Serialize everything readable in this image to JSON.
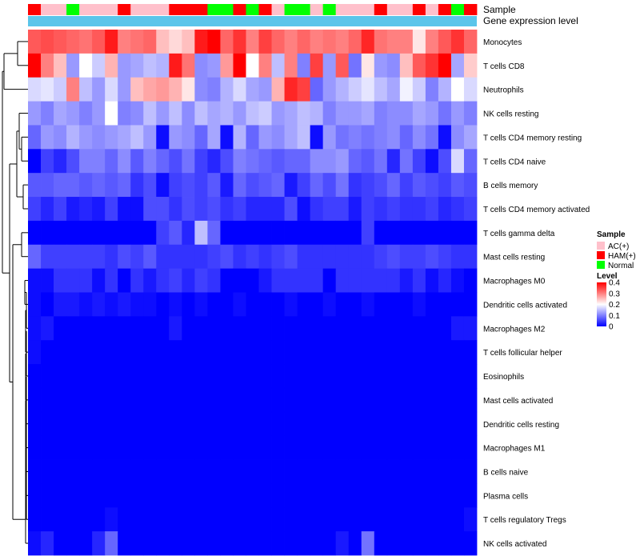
{
  "chart_data": {
    "type": "heatmap",
    "title": "",
    "annotation_tracks": [
      {
        "name": "Sample",
        "type": "categorical"
      },
      {
        "name": "Gene expression level",
        "type": "constant",
        "color": "#5bc5ea"
      }
    ],
    "sample_categories": [
      "AC(+)",
      "HAM(+)",
      "Normal"
    ],
    "sample_colors": {
      "AC(+)": "#ffc0cb",
      "HAM(+)": "#ff0000",
      "Normal": "#00ff00"
    },
    "sample_groups": [
      "HAM(+)",
      "AC(+)",
      "AC(+)",
      "Normal",
      "AC(+)",
      "AC(+)",
      "AC(+)",
      "HAM(+)",
      "AC(+)",
      "AC(+)",
      "AC(+)",
      "HAM(+)",
      "HAM(+)",
      "HAM(+)",
      "Normal",
      "Normal",
      "HAM(+)",
      "Normal",
      "HAM(+)",
      "AC(+)",
      "Normal",
      "Normal",
      "AC(+)",
      "Normal",
      "AC(+)",
      "AC(+)",
      "AC(+)",
      "HAM(+)",
      "AC(+)",
      "AC(+)",
      "HAM(+)",
      "AC(+)",
      "HAM(+)",
      "Normal",
      "HAM(+)"
    ],
    "rows": [
      "Monocytes",
      "T cells CD8",
      "Neutrophils",
      "NK cells resting",
      "T cells CD4 memory resting",
      "T cells CD4 naive",
      "B cells memory",
      "T cells CD4 memory activated",
      "T cells gamma delta",
      "Mast cells resting",
      "Macrophages M0",
      "Dendritic cells activated",
      "Macrophages M2",
      "T cells follicular helper",
      "Eosinophils",
      "Mast cells activated",
      "Dendritic cells resting",
      "Macrophages M1",
      "B cells naive",
      "Plasma cells",
      "T cells regulatory  Tregs",
      "NK cells activated"
    ],
    "values": [
      [
        0.33,
        0.34,
        0.33,
        0.32,
        0.31,
        0.33,
        0.38,
        0.3,
        0.31,
        0.32,
        0.25,
        0.23,
        0.25,
        0.38,
        0.4,
        0.32,
        0.36,
        0.3,
        0.35,
        0.32,
        0.3,
        0.32,
        0.3,
        0.31,
        0.3,
        0.32,
        0.37,
        0.31,
        0.3,
        0.3,
        0.22,
        0.3,
        0.33,
        0.36,
        0.32
      ],
      [
        0.4,
        0.3,
        0.25,
        0.12,
        0.2,
        0.16,
        0.26,
        0.12,
        0.13,
        0.15,
        0.14,
        0.38,
        0.31,
        0.11,
        0.12,
        0.28,
        0.4,
        0.2,
        0.3,
        0.15,
        0.3,
        0.1,
        0.35,
        0.12,
        0.33,
        0.09,
        0.22,
        0.12,
        0.11,
        0.25,
        0.33,
        0.36,
        0.4,
        0.13,
        0.24
      ],
      [
        0.17,
        0.18,
        0.16,
        0.3,
        0.15,
        0.12,
        0.17,
        0.12,
        0.25,
        0.27,
        0.28,
        0.26,
        0.22,
        0.11,
        0.1,
        0.14,
        0.17,
        0.13,
        0.12,
        0.26,
        0.37,
        0.35,
        0.08,
        0.12,
        0.14,
        0.16,
        0.18,
        0.15,
        0.13,
        0.19,
        0.16,
        0.1,
        0.14,
        0.2,
        0.17
      ],
      [
        0.12,
        0.1,
        0.13,
        0.12,
        0.1,
        0.12,
        0.2,
        0.1,
        0.11,
        0.15,
        0.12,
        0.15,
        0.11,
        0.15,
        0.13,
        0.14,
        0.12,
        0.15,
        0.16,
        0.12,
        0.13,
        0.15,
        0.14,
        0.1,
        0.12,
        0.12,
        0.13,
        0.1,
        0.11,
        0.11,
        0.13,
        0.12,
        0.09,
        0.12,
        0.1
      ],
      [
        0.08,
        0.12,
        0.11,
        0.14,
        0.12,
        0.11,
        0.12,
        0.13,
        0.15,
        0.12,
        0.01,
        0.12,
        0.11,
        0.08,
        0.13,
        0.01,
        0.14,
        0.08,
        0.12,
        0.11,
        0.13,
        0.15,
        0.01,
        0.12,
        0.09,
        0.1,
        0.09,
        0.1,
        0.11,
        0.08,
        0.11,
        0.09,
        0.01,
        0.11,
        0.13
      ],
      [
        0.0,
        0.05,
        0.03,
        0.06,
        0.1,
        0.1,
        0.08,
        0.11,
        0.07,
        0.1,
        0.08,
        0.06,
        0.09,
        0.05,
        0.03,
        0.06,
        0.1,
        0.09,
        0.08,
        0.07,
        0.08,
        0.08,
        0.11,
        0.11,
        0.12,
        0.08,
        0.07,
        0.09,
        0.03,
        0.09,
        0.05,
        0.01,
        0.06,
        0.17,
        0.08
      ],
      [
        0.07,
        0.07,
        0.08,
        0.08,
        0.07,
        0.08,
        0.07,
        0.08,
        0.04,
        0.06,
        0.01,
        0.05,
        0.06,
        0.05,
        0.07,
        0.02,
        0.08,
        0.06,
        0.07,
        0.08,
        0.02,
        0.05,
        0.08,
        0.06,
        0.09,
        0.04,
        0.05,
        0.06,
        0.08,
        0.05,
        0.07,
        0.06,
        0.05,
        0.07,
        0.06
      ],
      [
        0.05,
        0.03,
        0.05,
        0.02,
        0.03,
        0.02,
        0.05,
        0.01,
        0.01,
        0.06,
        0.06,
        0.04,
        0.06,
        0.05,
        0.06,
        0.04,
        0.05,
        0.03,
        0.03,
        0.03,
        0.06,
        0.01,
        0.04,
        0.05,
        0.05,
        0.02,
        0.05,
        0.04,
        0.05,
        0.04,
        0.04,
        0.05,
        0.03,
        0.04,
        0.05
      ],
      [
        0.0,
        0.0,
        0.0,
        0.0,
        0.0,
        0.0,
        0.0,
        0.0,
        0.0,
        0.0,
        0.05,
        0.07,
        0.03,
        0.15,
        0.08,
        0.0,
        0.0,
        0.0,
        0.0,
        0.0,
        0.0,
        0.0,
        0.0,
        0.0,
        0.0,
        0.0,
        0.05,
        0.0,
        0.0,
        0.0,
        0.0,
        0.0,
        0.0,
        0.0,
        0.0
      ],
      [
        0.08,
        0.05,
        0.05,
        0.05,
        0.05,
        0.05,
        0.04,
        0.06,
        0.05,
        0.07,
        0.04,
        0.04,
        0.04,
        0.04,
        0.05,
        0.06,
        0.04,
        0.05,
        0.04,
        0.05,
        0.06,
        0.04,
        0.04,
        0.04,
        0.04,
        0.04,
        0.04,
        0.05,
        0.06,
        0.05,
        0.05,
        0.06,
        0.05,
        0.04,
        0.04
      ],
      [
        0.01,
        0.01,
        0.04,
        0.04,
        0.04,
        0.01,
        0.04,
        0.0,
        0.04,
        0.02,
        0.04,
        0.05,
        0.03,
        0.05,
        0.04,
        0.0,
        0.0,
        0.0,
        0.02,
        0.04,
        0.04,
        0.04,
        0.04,
        0.0,
        0.04,
        0.04,
        0.04,
        0.04,
        0.04,
        0.02,
        0.04,
        0.01,
        0.03,
        0.01,
        0.0
      ],
      [
        0.01,
        0.0,
        0.02,
        0.02,
        0.01,
        0.02,
        0.01,
        0.02,
        0.01,
        0.01,
        0.0,
        0.01,
        0.0,
        0.01,
        0.0,
        0.0,
        0.01,
        0.0,
        0.0,
        0.0,
        0.01,
        0.0,
        0.0,
        0.01,
        0.0,
        0.0,
        0.01,
        0.0,
        0.0,
        0.0,
        0.01,
        0.0,
        0.0,
        0.0,
        0.0
      ],
      [
        0.01,
        0.02,
        0.0,
        0.0,
        0.0,
        0.0,
        0.0,
        0.0,
        0.0,
        0.0,
        0.0,
        0.02,
        0.0,
        0.0,
        0.0,
        0.0,
        0.0,
        0.0,
        0.0,
        0.0,
        0.0,
        0.0,
        0.0,
        0.0,
        0.0,
        0.0,
        0.0,
        0.0,
        0.0,
        0.0,
        0.0,
        0.0,
        0.0,
        0.02,
        0.02
      ],
      [
        0.01,
        0.0,
        0.0,
        0.0,
        0.0,
        0.0,
        0.0,
        0.0,
        0.0,
        0.0,
        0.0,
        0.0,
        0.0,
        0.0,
        0.0,
        0.0,
        0.0,
        0.0,
        0.0,
        0.0,
        0.0,
        0.0,
        0.0,
        0.0,
        0.0,
        0.0,
        0.0,
        0.0,
        0.0,
        0.0,
        0.0,
        0.0,
        0.0,
        0.0,
        0.0
      ],
      [
        0.0,
        0.0,
        0.0,
        0.0,
        0.0,
        0.0,
        0.0,
        0.0,
        0.0,
        0.0,
        0.0,
        0.0,
        0.0,
        0.0,
        0.0,
        0.0,
        0.0,
        0.0,
        0.0,
        0.0,
        0.0,
        0.0,
        0.0,
        0.0,
        0.0,
        0.0,
        0.0,
        0.0,
        0.0,
        0.0,
        0.0,
        0.0,
        0.0,
        0.0,
        0.0
      ],
      [
        0.0,
        0.0,
        0.0,
        0.0,
        0.0,
        0.0,
        0.0,
        0.0,
        0.0,
        0.0,
        0.0,
        0.0,
        0.0,
        0.0,
        0.0,
        0.0,
        0.0,
        0.0,
        0.0,
        0.0,
        0.0,
        0.0,
        0.0,
        0.0,
        0.0,
        0.0,
        0.0,
        0.0,
        0.0,
        0.0,
        0.0,
        0.0,
        0.0,
        0.0,
        0.0
      ],
      [
        0.0,
        0.0,
        0.0,
        0.0,
        0.0,
        0.0,
        0.0,
        0.0,
        0.0,
        0.0,
        0.0,
        0.0,
        0.0,
        0.0,
        0.0,
        0.0,
        0.0,
        0.0,
        0.0,
        0.0,
        0.0,
        0.0,
        0.0,
        0.0,
        0.0,
        0.0,
        0.0,
        0.0,
        0.0,
        0.0,
        0.0,
        0.0,
        0.0,
        0.0,
        0.0
      ],
      [
        0.0,
        0.0,
        0.0,
        0.0,
        0.0,
        0.0,
        0.0,
        0.0,
        0.0,
        0.0,
        0.0,
        0.0,
        0.0,
        0.0,
        0.0,
        0.0,
        0.0,
        0.0,
        0.0,
        0.0,
        0.0,
        0.0,
        0.0,
        0.0,
        0.0,
        0.0,
        0.0,
        0.0,
        0.0,
        0.0,
        0.0,
        0.0,
        0.0,
        0.0,
        0.0
      ],
      [
        0.0,
        0.0,
        0.0,
        0.0,
        0.0,
        0.0,
        0.0,
        0.0,
        0.0,
        0.0,
        0.0,
        0.0,
        0.0,
        0.0,
        0.0,
        0.0,
        0.0,
        0.0,
        0.0,
        0.0,
        0.0,
        0.0,
        0.0,
        0.0,
        0.0,
        0.0,
        0.0,
        0.0,
        0.0,
        0.0,
        0.0,
        0.0,
        0.0,
        0.0,
        0.0
      ],
      [
        0.0,
        0.0,
        0.0,
        0.0,
        0.0,
        0.0,
        0.0,
        0.0,
        0.0,
        0.0,
        0.0,
        0.0,
        0.0,
        0.0,
        0.0,
        0.0,
        0.0,
        0.0,
        0.0,
        0.0,
        0.0,
        0.0,
        0.0,
        0.0,
        0.0,
        0.0,
        0.0,
        0.0,
        0.0,
        0.0,
        0.0,
        0.0,
        0.0,
        0.0,
        0.0
      ],
      [
        0.0,
        0.0,
        0.0,
        0.0,
        0.0,
        0.0,
        0.01,
        0.0,
        0.0,
        0.0,
        0.0,
        0.0,
        0.0,
        0.0,
        0.0,
        0.0,
        0.0,
        0.0,
        0.0,
        0.0,
        0.0,
        0.0,
        0.0,
        0.0,
        0.0,
        0.0,
        0.0,
        0.0,
        0.0,
        0.0,
        0.0,
        0.0,
        0.0,
        0.0,
        0.01
      ],
      [
        0.01,
        0.03,
        0.0,
        0.0,
        0.0,
        0.03,
        0.08,
        0.0,
        0.0,
        0.0,
        0.0,
        0.0,
        0.0,
        0.0,
        0.0,
        0.0,
        0.0,
        0.0,
        0.0,
        0.0,
        0.0,
        0.0,
        0.0,
        0.0,
        0.02,
        0.0,
        0.09,
        0.0,
        0.0,
        0.0,
        0.0,
        0.0,
        0.0,
        0.0,
        0.0
      ]
    ],
    "color_scale": {
      "stops": [
        {
          "value": 0,
          "color": "#0000ff"
        },
        {
          "value": 0.2,
          "color": "#ffffff"
        },
        {
          "value": 0.4,
          "color": "#ff0000"
        }
      ]
    },
    "legend": {
      "sample_title": "Sample",
      "level_title": "Level",
      "level_ticks": [
        "0.4",
        "0.3",
        "0.2",
        "0.1",
        "0"
      ],
      "level_tick_values": [
        0.4,
        0.3,
        0.2,
        0.1,
        0
      ],
      "placement": "right"
    },
    "row_dendrogram": true
  }
}
